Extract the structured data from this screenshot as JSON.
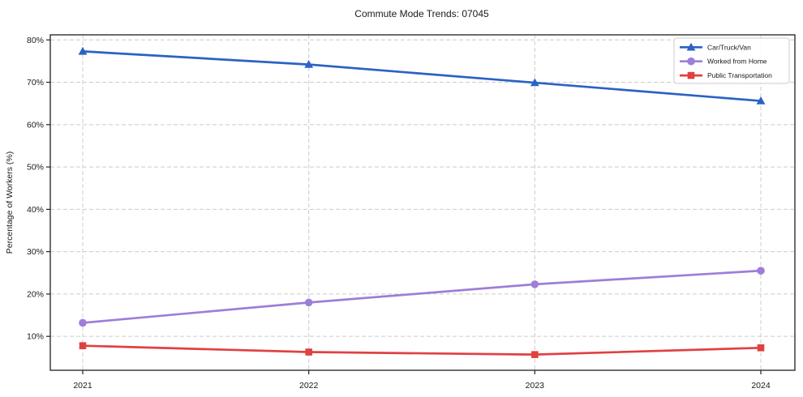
{
  "chart_data": {
    "type": "line",
    "title": "Commute Mode Trends: 07045",
    "xlabel": "",
    "ylabel": "Percentage of Workers (%)",
    "x": [
      "2021",
      "2022",
      "2023",
      "2024"
    ],
    "series": [
      {
        "name": "Car/Truck/Van",
        "values": [
          77.3,
          74.2,
          69.9,
          65.6
        ],
        "color": "#2b62c5",
        "marker": "triangle"
      },
      {
        "name": "Worked from Home",
        "values": [
          13.2,
          18.0,
          22.3,
          25.5
        ],
        "color": "#9d7ed8",
        "marker": "circle"
      },
      {
        "name": "Public Transportation",
        "values": [
          7.8,
          6.3,
          5.7,
          7.3
        ],
        "color": "#e04141",
        "marker": "square"
      }
    ],
    "yticks": [
      10,
      20,
      30,
      40,
      50,
      60,
      70,
      80
    ],
    "ytick_suffix": "%",
    "ylim": [
      2.0,
      81.2
    ],
    "grid": "dashed-both-axes",
    "legend_position": "top-right"
  },
  "style": {
    "background": "#ffffff",
    "grid_color": "#cccccc",
    "spine_color": "#1f1f1f",
    "tick_color": "#1f1f1f",
    "text_color": "#1a1a1a",
    "legend_border_color": "#cccccc",
    "legend_fill": "#ffffff"
  }
}
